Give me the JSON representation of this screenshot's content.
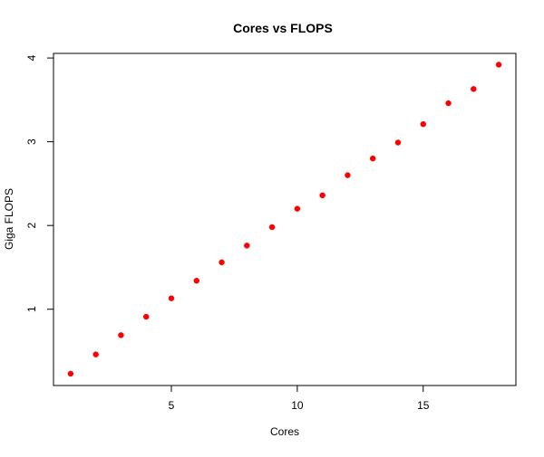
{
  "chart_data": {
    "type": "scatter",
    "title": "Cores vs FLOPS",
    "xlabel": "Cores",
    "ylabel": "Giga FLOPS",
    "xlim": [
      0.32,
      18.68
    ],
    "ylim": [
      0.089,
      4.055
    ],
    "x_ticks": [
      5,
      10,
      15
    ],
    "y_ticks": [
      1,
      2,
      3,
      4
    ],
    "grid": false,
    "legend": "none",
    "point_color": "#ff0000",
    "series": [
      {
        "x": [
          1,
          2,
          3,
          4,
          5,
          6,
          7,
          8,
          9,
          10,
          11,
          12,
          13,
          14,
          15,
          16,
          17,
          18
        ],
        "y": [
          0.23,
          0.46,
          0.69,
          0.91,
          1.13,
          1.34,
          1.56,
          1.76,
          1.98,
          2.2,
          2.36,
          2.6,
          2.8,
          2.99,
          3.21,
          3.46,
          3.63,
          3.92
        ]
      }
    ]
  }
}
